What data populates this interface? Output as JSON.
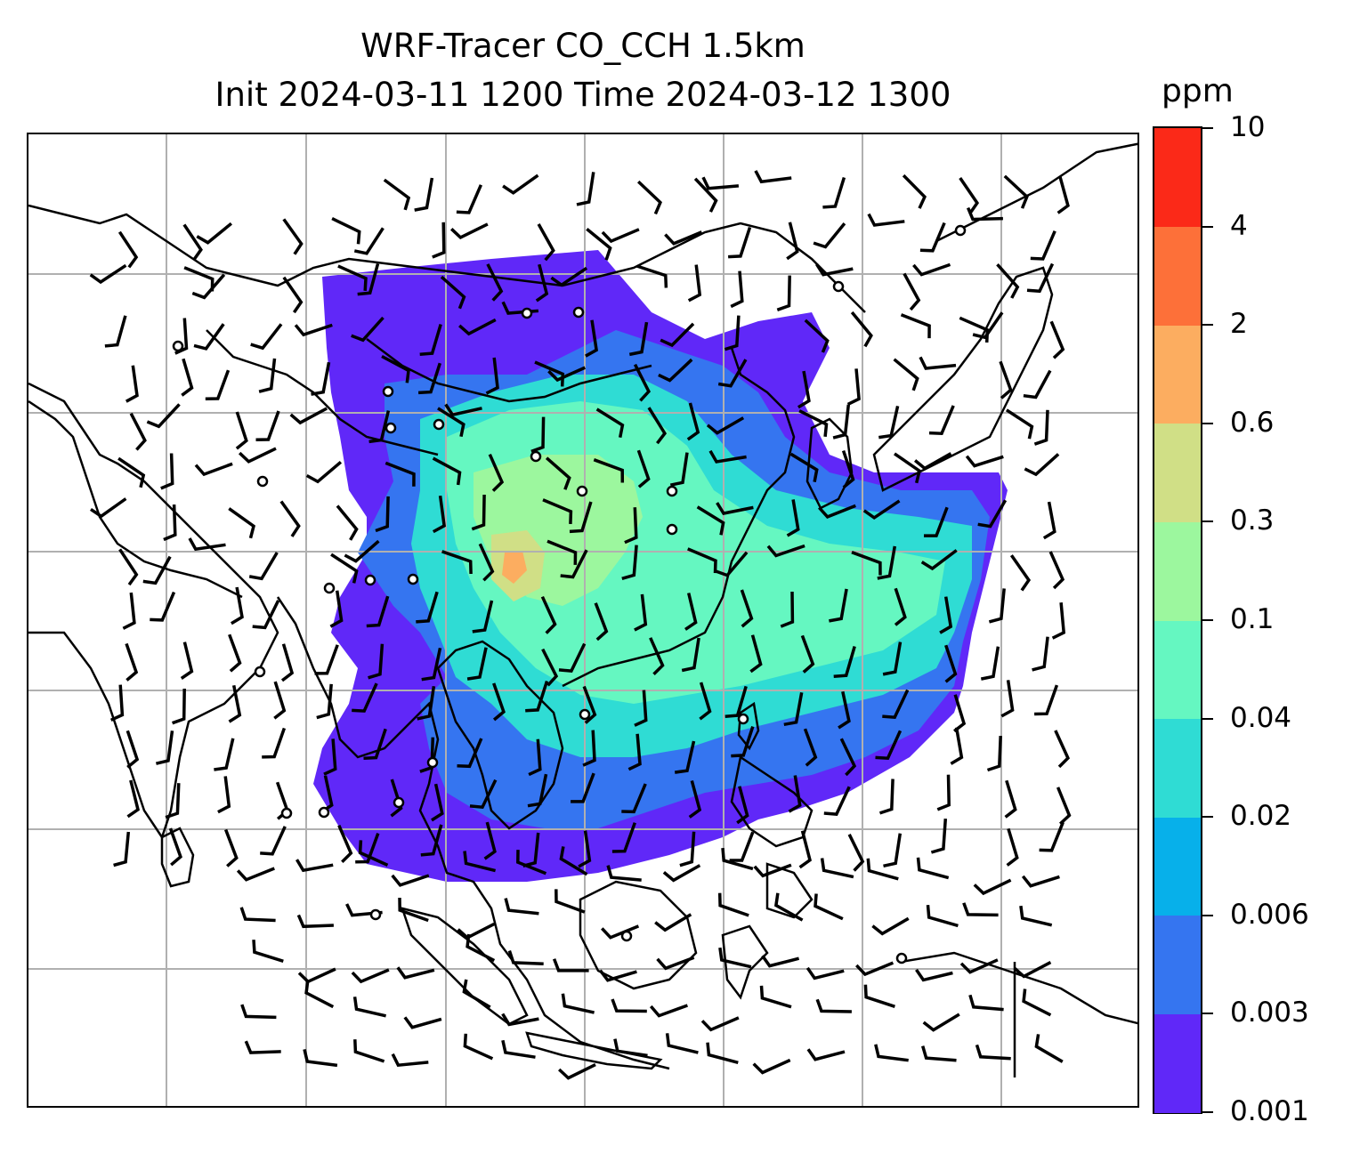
{
  "title": {
    "line1": "WRF-Tracer CO_CCH 1.5km",
    "line2": "Init 2024-03-11 1200 Time 2024-03-12 1300"
  },
  "colorbar": {
    "unit": "ppm",
    "levels": [
      "0.001",
      "0.003",
      "0.006",
      "0.02",
      "0.04",
      "0.1",
      "0.3",
      "0.6",
      "2",
      "4",
      "10"
    ],
    "colors": [
      "#6028f8",
      "#3575f0",
      "#07b0ea",
      "#2fdcd4",
      "#65f7c1",
      "#9cf79e",
      "#d0df86",
      "#fcad60",
      "#fd7039",
      "#fb2918"
    ]
  },
  "map": {
    "graticule": "on",
    "features": [
      "coastlines",
      "country-borders",
      "wind-barbs",
      "station-markers"
    ],
    "colors": {
      "coast": "#000000",
      "grid": "#b0b0b0"
    }
  }
}
